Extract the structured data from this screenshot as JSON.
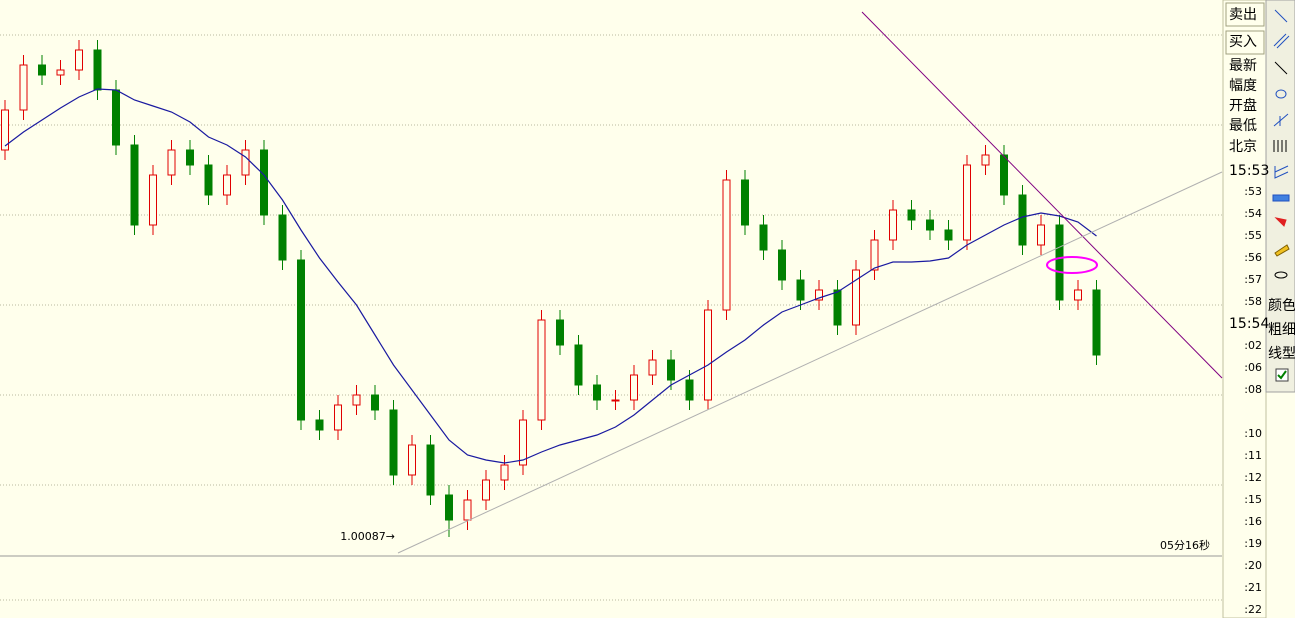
{
  "chart_data": {
    "type": "candlestick",
    "ylim": [
      1.00068,
      1.00624
    ],
    "open": [
      1.00474,
      1.00514,
      1.00559,
      1.00549,
      1.00554,
      1.00574,
      1.00534,
      1.00479,
      1.00399,
      1.00449,
      1.00474,
      1.00459,
      1.00429,
      1.00449,
      1.00474,
      1.00409,
      1.00364,
      1.00204,
      1.00194,
      1.00219,
      1.00229,
      1.00214,
      1.00149,
      1.00179,
      1.00129,
      1.00104,
      1.00124,
      1.00144,
      1.00159,
      1.00204,
      1.00304,
      1.00279,
      1.00239,
      1.00224,
      1.00224,
      1.00249,
      1.00264,
      1.00244,
      1.00224,
      1.00314,
      1.00444,
      1.00399,
      1.00374,
      1.00344,
      1.00324,
      1.00334,
      1.00299,
      1.00354,
      1.00384,
      1.00414,
      1.00404,
      1.00394,
      1.00384,
      1.00459,
      1.00469,
      1.00429,
      1.00379,
      1.00399,
      1.00324,
      1.00334
    ],
    "high": [
      1.00524,
      1.00569,
      1.00569,
      1.00564,
      1.00584,
      1.00584,
      1.00544,
      1.00489,
      1.00459,
      1.00484,
      1.00484,
      1.00469,
      1.00459,
      1.00484,
      1.00484,
      1.00419,
      1.00374,
      1.00214,
      1.00229,
      1.00239,
      1.00239,
      1.00224,
      1.00189,
      1.00189,
      1.00139,
      1.00134,
      1.00154,
      1.00169,
      1.00214,
      1.00314,
      1.00314,
      1.00289,
      1.00249,
      1.00234,
      1.00259,
      1.00274,
      1.00274,
      1.00254,
      1.00324,
      1.00454,
      1.00454,
      1.00409,
      1.00384,
      1.00354,
      1.00344,
      1.00344,
      1.00364,
      1.00394,
      1.00424,
      1.00424,
      1.00414,
      1.00404,
      1.00469,
      1.00479,
      1.00479,
      1.00439,
      1.00409,
      1.00409,
      1.00344,
      1.00344
    ],
    "low": [
      1.00464,
      1.00504,
      1.00539,
      1.00539,
      1.00544,
      1.00524,
      1.00469,
      1.00389,
      1.00389,
      1.00439,
      1.00449,
      1.00419,
      1.00419,
      1.00439,
      1.00399,
      1.00354,
      1.00194,
      1.00184,
      1.00184,
      1.00209,
      1.00204,
      1.00139,
      1.00139,
      1.00119,
      1.00087,
      1.00094,
      1.00114,
      1.00134,
      1.00149,
      1.00194,
      1.00269,
      1.00229,
      1.00214,
      1.00214,
      1.00214,
      1.00239,
      1.00234,
      1.00214,
      1.00214,
      1.00304,
      1.00389,
      1.00364,
      1.00334,
      1.00314,
      1.00314,
      1.00289,
      1.00289,
      1.00344,
      1.00374,
      1.00394,
      1.00384,
      1.00374,
      1.00374,
      1.00449,
      1.00419,
      1.00369,
      1.00369,
      1.00314,
      1.00314,
      1.00259
    ],
    "close": [
      1.00514,
      1.00559,
      1.00549,
      1.00554,
      1.00574,
      1.00534,
      1.00479,
      1.00399,
      1.00449,
      1.00474,
      1.00459,
      1.00429,
      1.00449,
      1.00474,
      1.00409,
      1.00364,
      1.00204,
      1.00194,
      1.00219,
      1.00229,
      1.00214,
      1.00149,
      1.00179,
      1.00129,
      1.00104,
      1.00124,
      1.00144,
      1.00159,
      1.00204,
      1.00304,
      1.00279,
      1.00239,
      1.00224,
      1.00224,
      1.00249,
      1.00264,
      1.00244,
      1.00224,
      1.00314,
      1.00444,
      1.00399,
      1.00374,
      1.00344,
      1.00324,
      1.00334,
      1.00299,
      1.00354,
      1.00384,
      1.00414,
      1.00404,
      1.00394,
      1.00384,
      1.00459,
      1.00469,
      1.00429,
      1.00379,
      1.00399,
      1.00324,
      1.00334,
      1.00269
    ],
    "ma": [
      1.00478,
      1.00492,
      1.00504,
      1.00516,
      1.00527,
      1.00535,
      1.00534,
      1.00524,
      1.00518,
      1.00512,
      1.00502,
      1.00487,
      1.00479,
      1.00467,
      1.00449,
      1.00424,
      1.00394,
      1.00366,
      1.00342,
      1.00319,
      1.00289,
      1.00259,
      1.00234,
      1.00209,
      1.00184,
      1.00169,
      1.00164,
      1.00161,
      1.00164,
      1.00172,
      1.00179,
      1.00184,
      1.00189,
      1.00197,
      1.00209,
      1.00224,
      1.00239,
      1.00249,
      1.00259,
      1.00272,
      1.00284,
      1.00299,
      1.00312,
      1.00319,
      1.00326,
      1.00332,
      1.00344,
      1.00356,
      1.00362,
      1.00362,
      1.00363,
      1.00366,
      1.00379,
      1.00389,
      1.00399,
      1.00407,
      1.00411,
      1.00408,
      1.00402,
      1.00388
    ],
    "up_color": "#e00000",
    "down_color": "#008000",
    "ma_color": "#1a1aa0",
    "low_label": "1.00087→",
    "timer": "05分16秒"
  },
  "panel": {
    "labels": [
      "卖出",
      "买入",
      "最新",
      "幅度",
      "开盘",
      "最低",
      "北京"
    ],
    "times": [
      "15:53",
      ":53",
      ":54",
      ":55",
      ":56",
      ":57",
      ":58",
      "15:54",
      ":02",
      ":06",
      ":08",
      ":10",
      ":11",
      ":12",
      ":15",
      ":16",
      ":19",
      ":20",
      ":21",
      ":22"
    ]
  },
  "tools": {
    "labels": [
      "颜色",
      "粗细",
      "线型"
    ]
  }
}
